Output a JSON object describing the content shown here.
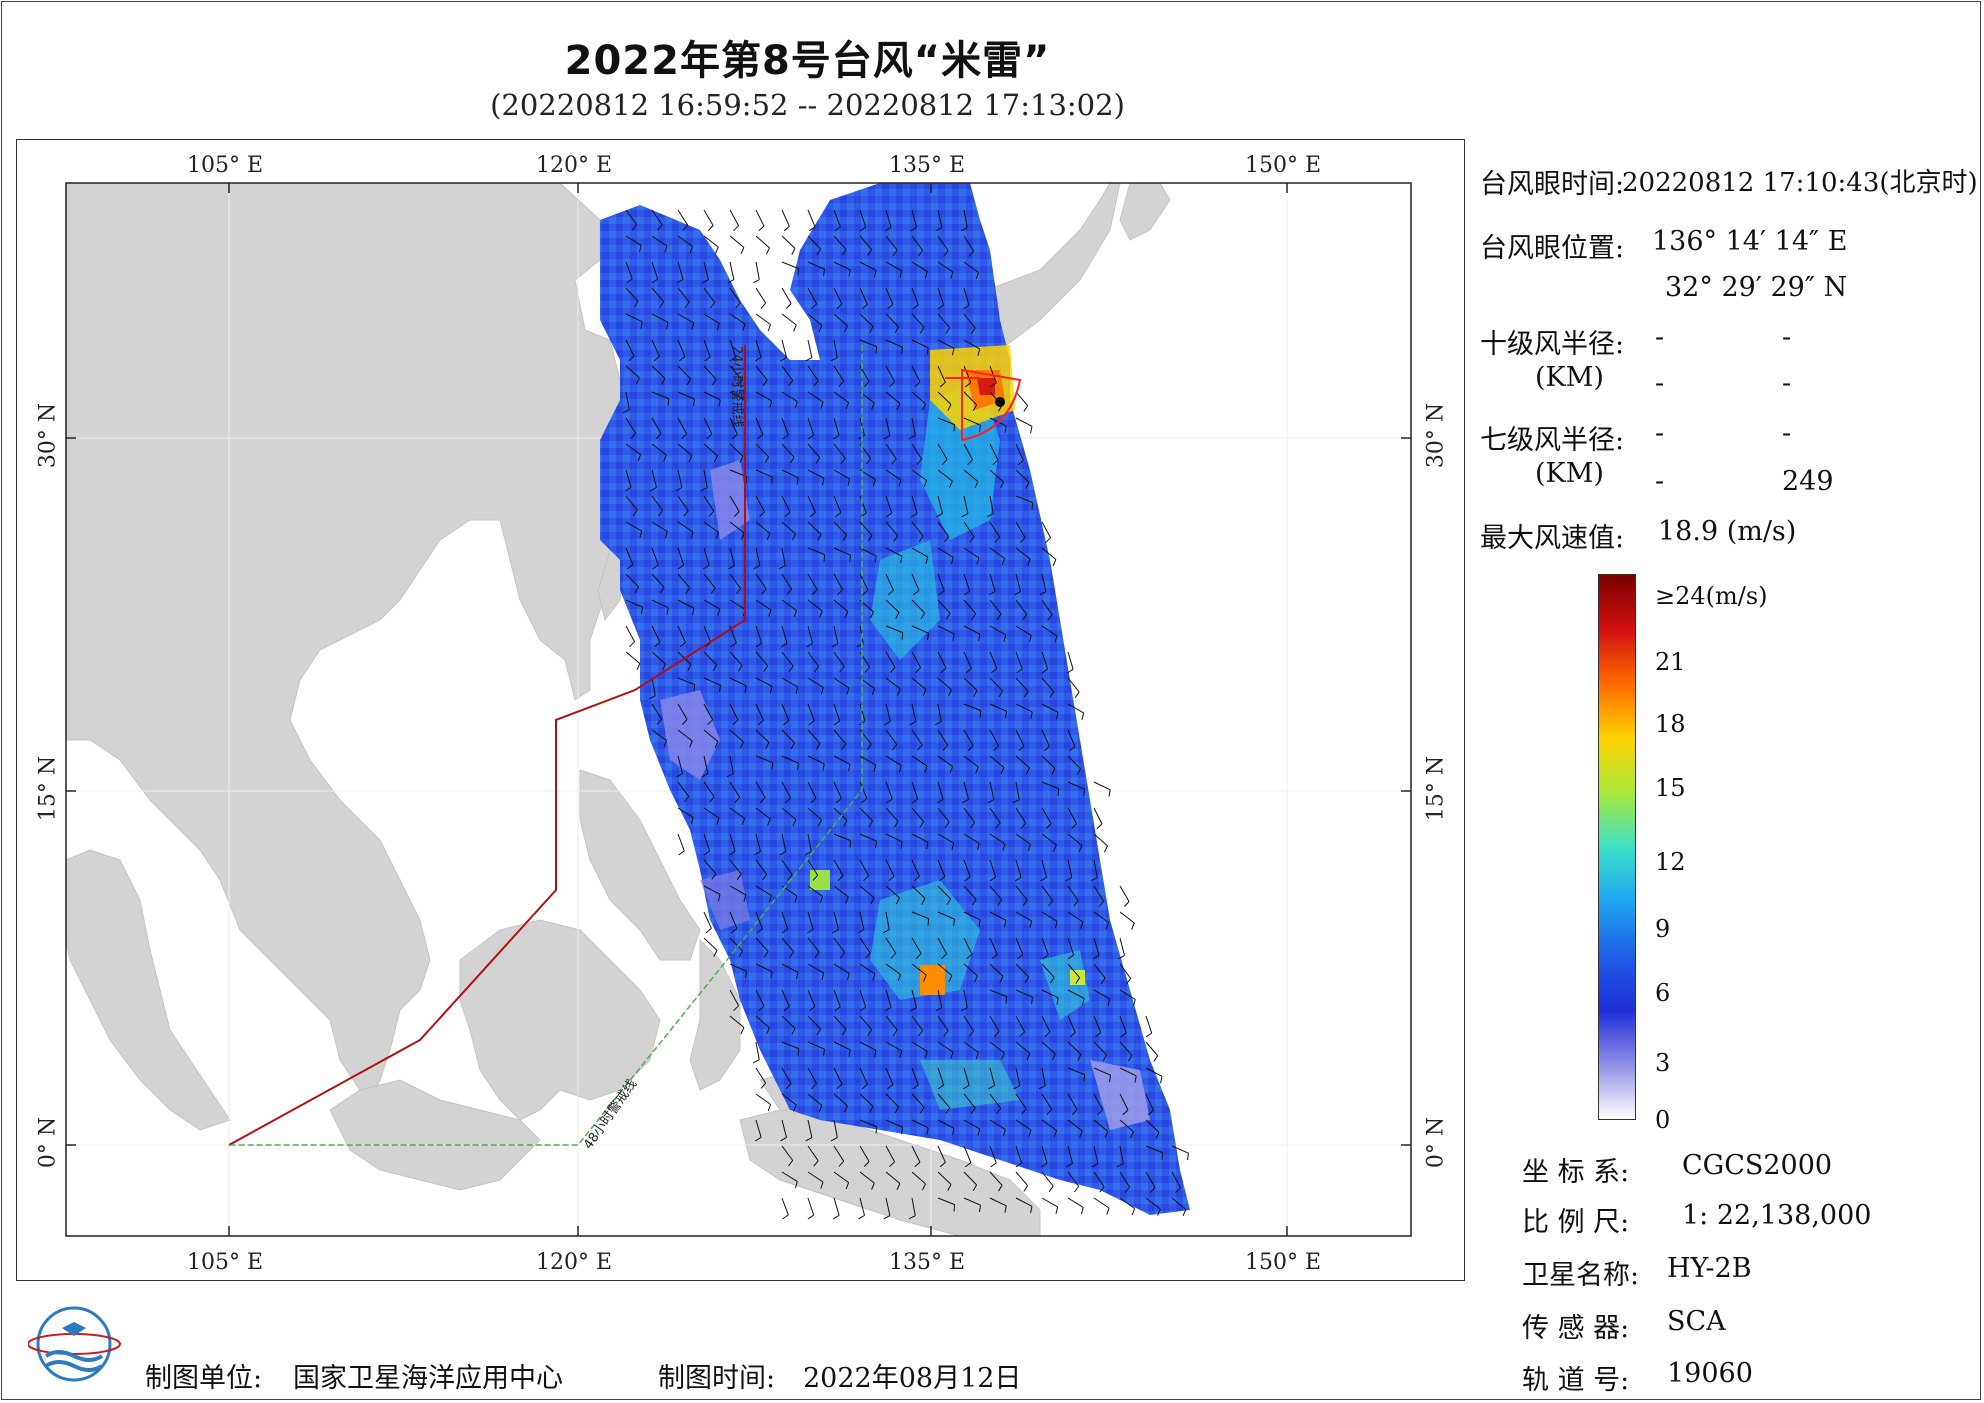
{
  "title": "2022年第8号台风“米雷”",
  "subtitle": "(20220812 16:59:52 -- 20220812 17:13:02)",
  "axes": {
    "lon_ticks": [
      "105° E",
      "120° E",
      "135° E",
      "150° E"
    ],
    "lat_ticks": [
      "30° N",
      "15° N",
      "0° N"
    ]
  },
  "map_labels": {
    "line_24h": "24小时警戒线",
    "line_48h": "48小时警戒线"
  },
  "info": {
    "eye_time_label": "台风眼时间:",
    "eye_time_value": "20220812 17:10:43(北京时)",
    "eye_pos_label": "台风眼位置:",
    "eye_lon": "136° 14′ 14″ E",
    "eye_lat": "32° 29′ 29″ N",
    "r10_label": "十级风半径:",
    "r7_label": "七级风半径:",
    "km_label": "(KM)",
    "r10_values": [
      "-",
      "-",
      "-",
      "-"
    ],
    "r7_values": [
      "-",
      "-",
      "-",
      "249"
    ],
    "max_wind_label": "最大风速值:",
    "max_wind_value": "18.9  (m/s)"
  },
  "colorbar": {
    "top_label": "≥24(m/s)",
    "ticks": [
      "21",
      "18",
      "15",
      "12",
      "9",
      "6",
      "3",
      "0"
    ],
    "colors": [
      "#7a0000",
      "#d21010",
      "#ff6a00",
      "#ffd200",
      "#a8e83a",
      "#3fe0c8",
      "#1ea6f0",
      "#1f5fe6",
      "#1e2ed8",
      "#8f8fe6",
      "#ffffff"
    ]
  },
  "meta": {
    "crs_label": "坐 标 系:",
    "crs_value": "CGCS2000",
    "scale_label": "比 例 尺:",
    "scale_value": "1: 22,138,000",
    "sat_label": "卫星名称:",
    "sat_value": "HY-2B",
    "sensor_label": "传 感 器:",
    "sensor_value": "SCA",
    "orbit_label": "轨 道 号:",
    "orbit_value": "19060"
  },
  "footer": {
    "unit_label": "制图单位:",
    "unit_value": "国家卫星海洋应用中心",
    "time_label": "制图时间:",
    "time_value": "2022年08月12日"
  },
  "colors": {
    "land": "#d3d3d3",
    "ocean": "#ffffff",
    "line_24h": "#b01010",
    "line_48h": "#4caf50",
    "track": "#ff2020"
  }
}
